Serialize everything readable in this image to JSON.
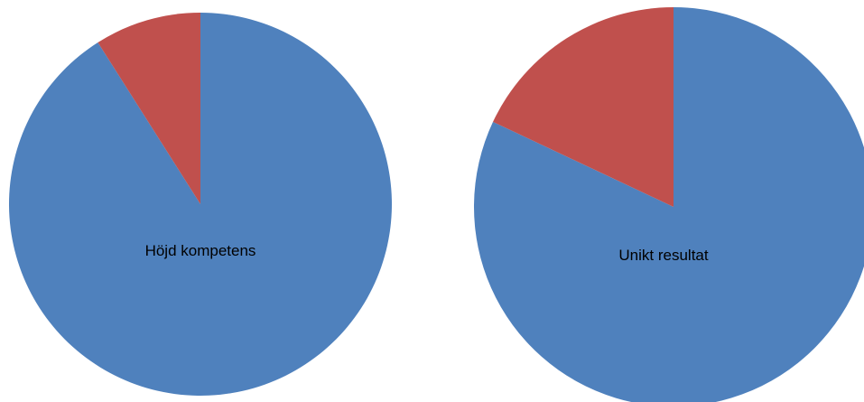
{
  "chart_data": [
    {
      "type": "pie",
      "label": "Höjd kompetens",
      "start": "top",
      "direction": "clockwise",
      "slices": [
        {
          "value": 91,
          "color": "#4F81BD"
        },
        {
          "value": 9,
          "color": "#C0504D"
        }
      ]
    },
    {
      "type": "pie",
      "label": "Unikt resultat",
      "start": "top",
      "direction": "clockwise",
      "slices": [
        {
          "value": 82,
          "color": "#4F81BD"
        },
        {
          "value": 18,
          "color": "#C0504D"
        }
      ]
    }
  ]
}
